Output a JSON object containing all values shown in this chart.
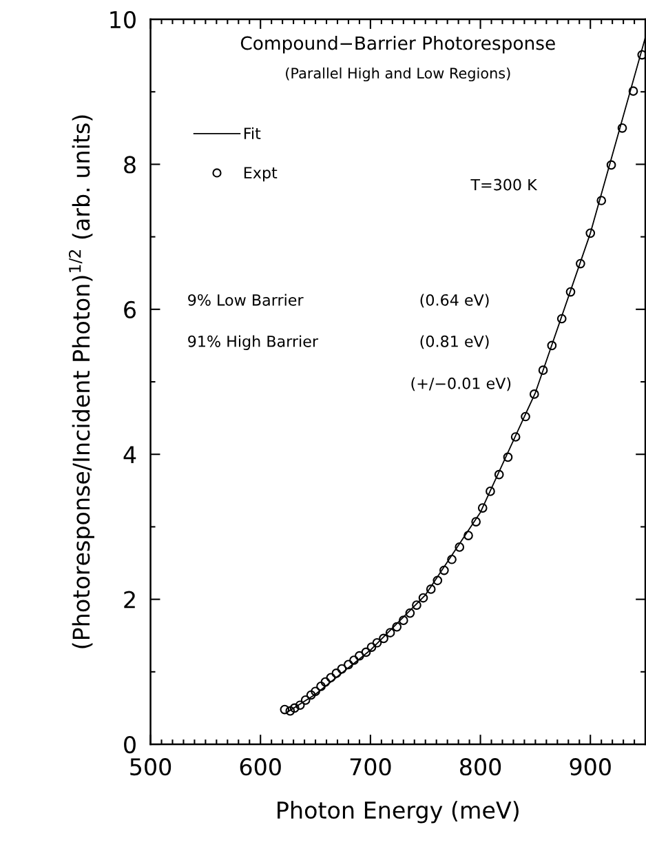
{
  "chart_data": {
    "type": "scatter",
    "title": "Compound−Barrier Photoresponse",
    "subtitle": "(Parallel High and Low Regions)",
    "xlabel": "Photon Energy (meV)",
    "ylabel": "(Photoresponse/Incident Photon)$^{1/2}$ (arb. units)",
    "xlim": [
      500,
      950
    ],
    "xticks": [
      500,
      600,
      700,
      800,
      900
    ],
    "ylim": [
      0,
      10
    ],
    "yticks": [
      0,
      2,
      4,
      6,
      8,
      10
    ],
    "grid": false,
    "legend": "top left",
    "annotations": [
      "T=300 K",
      "9% Low Barrier",
      "(0.64 eV)",
      "91% High Barrier",
      "(0.81 eV)",
      "(+/−0.01 eV)"
    ],
    "series": [
      {
        "name": "Fit",
        "type": "line",
        "color": "#000000",
        "line_style": "solid",
        "marker": "none",
        "x": [
          625,
          650,
          700,
          750,
          800,
          850,
          900,
          950
        ],
        "values": [
          0.45,
          0.69,
          1.3,
          2.06,
          3.2,
          4.85,
          7.05,
          9.75
        ]
      },
      {
        "name": "Expt",
        "color": "#000000",
        "marker": "circle",
        "x": [
          622,
          627,
          631,
          636,
          641,
          646,
          650,
          655,
          659,
          664,
          669,
          674,
          680,
          685,
          690,
          696,
          701,
          706,
          712,
          718,
          724,
          730,
          736,
          742,
          748,
          755,
          761,
          767,
          774,
          781,
          789,
          796,
          802,
          809,
          817,
          825,
          832,
          841,
          849,
          857,
          865,
          874,
          882,
          891,
          900,
          910,
          919,
          929,
          939,
          947
        ],
        "values": [
          0.48,
          0.46,
          0.5,
          0.54,
          0.61,
          0.68,
          0.73,
          0.8,
          0.86,
          0.92,
          0.98,
          1.04,
          1.1,
          1.16,
          1.22,
          1.27,
          1.34,
          1.4,
          1.46,
          1.54,
          1.62,
          1.71,
          1.81,
          1.92,
          2.02,
          2.14,
          2.26,
          2.4,
          2.55,
          2.72,
          2.88,
          3.07,
          3.26,
          3.49,
          3.72,
          3.96,
          4.24,
          4.52,
          4.83,
          5.16,
          5.5,
          5.87,
          6.24,
          6.63,
          7.05,
          7.5,
          7.99,
          8.5,
          9.01,
          9.51
        ]
      }
    ]
  }
}
